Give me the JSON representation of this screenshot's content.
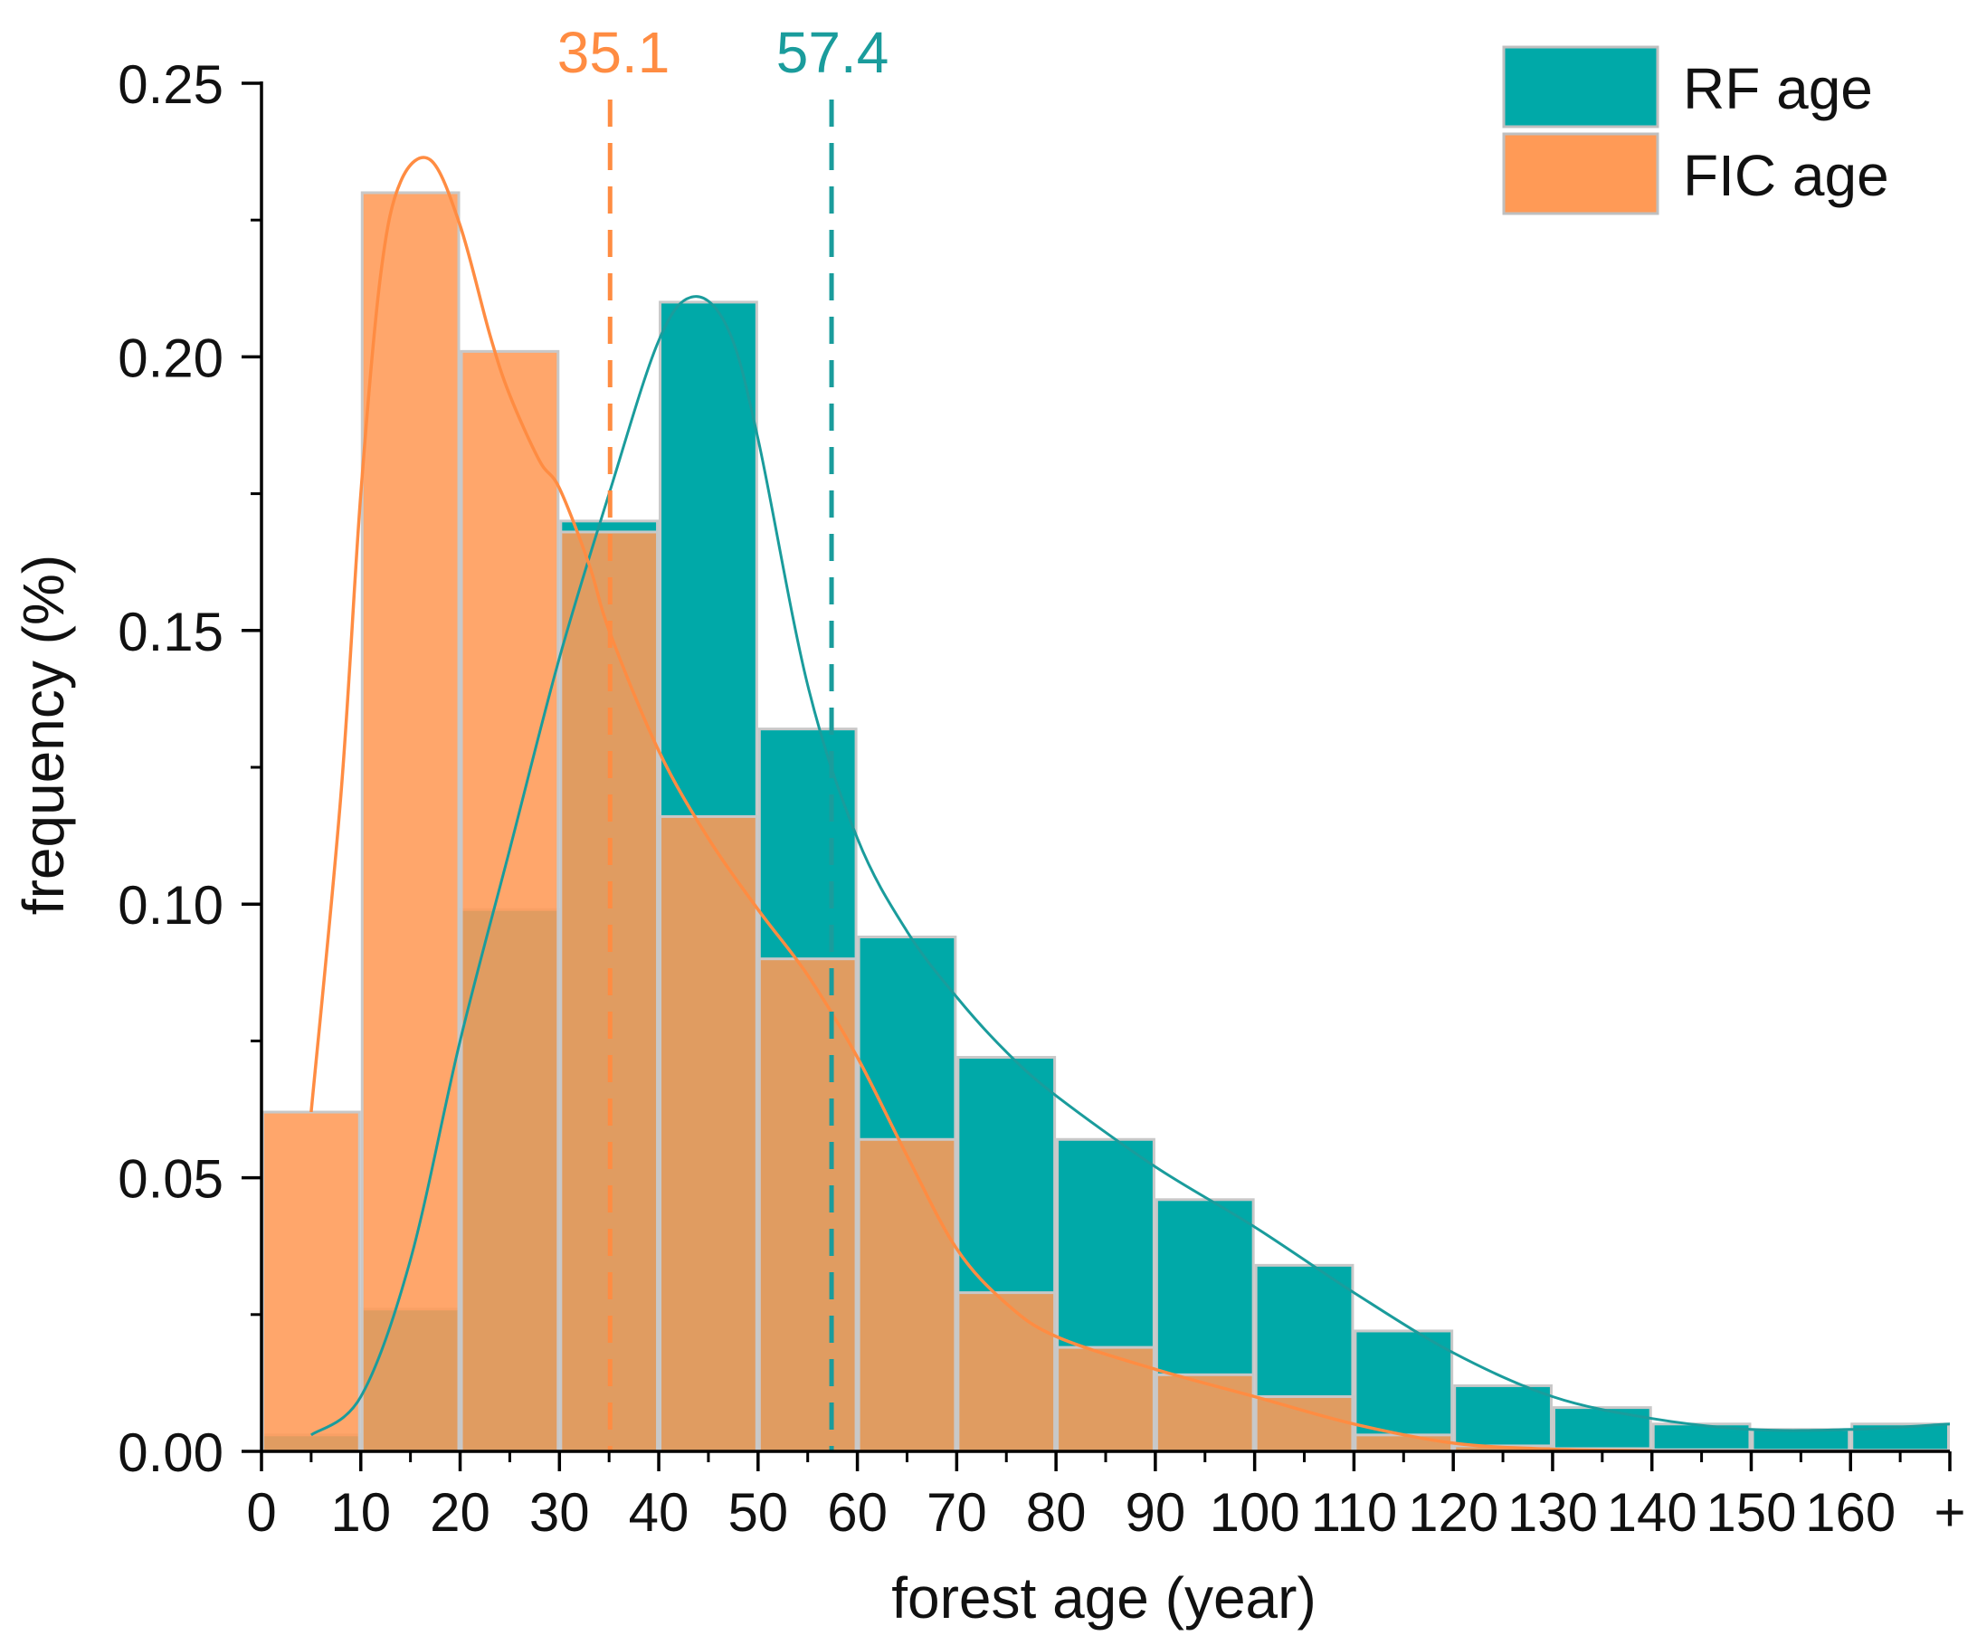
{
  "chart_data": {
    "type": "bar",
    "title": "",
    "xlabel": "forest age (year)",
    "ylabel": "frequency (%)",
    "xlim": [
      0,
      170
    ],
    "ylim": [
      0,
      0.25
    ],
    "bin_width": 10,
    "x_tick_labels": [
      "0",
      "10",
      "20",
      "30",
      "40",
      "50",
      "60",
      "70",
      "80",
      "90",
      "100",
      "110",
      "120",
      "130",
      "140",
      "150",
      "160",
      "+"
    ],
    "y_tick_labels": [
      "0.00",
      "0.05",
      "0.10",
      "0.15",
      "0.20",
      "0.25"
    ],
    "y_tick_values": [
      0,
      0.05,
      0.1,
      0.15,
      0.2,
      0.25
    ],
    "series": [
      {
        "name": "RF age",
        "color": "#00A9A8",
        "bins_start": [
          0,
          10,
          20,
          30,
          40,
          50,
          60,
          70,
          80,
          90,
          100,
          110,
          120,
          130,
          140,
          150,
          160
        ],
        "values": [
          0.003,
          0.026,
          0.099,
          0.17,
          0.21,
          0.132,
          0.094,
          0.072,
          0.057,
          0.046,
          0.034,
          0.022,
          0.012,
          0.008,
          0.005,
          0.004,
          0.005
        ],
        "kde_x": [
          5,
          10,
          15,
          20,
          25,
          30,
          35,
          40,
          43.5,
          47,
          50,
          55,
          60,
          65,
          70,
          75,
          80,
          90,
          100,
          110,
          120,
          130,
          140,
          150,
          160,
          170
        ],
        "kde_y": [
          0.003,
          0.01,
          0.035,
          0.075,
          0.11,
          0.145,
          0.175,
          0.203,
          0.211,
          0.205,
          0.185,
          0.14,
          0.112,
          0.095,
          0.083,
          0.073,
          0.065,
          0.052,
          0.041,
          0.029,
          0.018,
          0.01,
          0.006,
          0.004,
          0.004,
          0.005
        ],
        "mean": 57.4
      },
      {
        "name": "FIC age",
        "color": "#FF9A56",
        "bins_start": [
          0,
          10,
          20,
          30,
          40,
          50,
          60,
          70,
          80,
          90,
          100,
          110,
          120,
          130,
          140,
          150,
          160
        ],
        "values": [
          0.062,
          0.23,
          0.201,
          0.168,
          0.116,
          0.09,
          0.057,
          0.029,
          0.019,
          0.014,
          0.01,
          0.003,
          0.001,
          0.0005,
          0.0003,
          0.0002,
          0.0002
        ],
        "kde_x": [
          5,
          8,
          10,
          12,
          14,
          17,
          20,
          23,
          25,
          28,
          30,
          33,
          35,
          40,
          45,
          50,
          55,
          60,
          65,
          70,
          75,
          80,
          90,
          100,
          110,
          120,
          130,
          140
        ],
        "kde_y": [
          0.062,
          0.12,
          0.175,
          0.215,
          0.232,
          0.236,
          0.224,
          0.204,
          0.193,
          0.181,
          0.176,
          0.162,
          0.15,
          0.128,
          0.112,
          0.099,
          0.087,
          0.072,
          0.054,
          0.037,
          0.027,
          0.021,
          0.015,
          0.01,
          0.005,
          0.0015,
          0.0004,
          0.0001
        ],
        "mean": 35.1
      }
    ],
    "mean_labels": [
      "35.1",
      "57.4"
    ],
    "legend_position": "top-right"
  }
}
